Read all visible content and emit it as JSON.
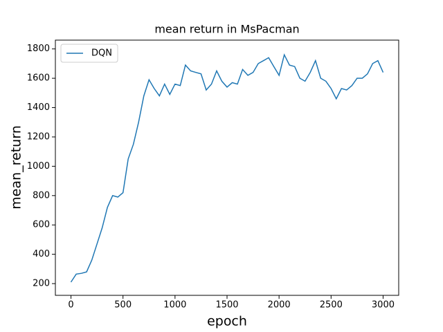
{
  "chart_data": {
    "type": "line",
    "title": "mean return in MsPacman",
    "x_label": "epoch",
    "y_label": "mean_return",
    "x": [
      0,
      50,
      100,
      150,
      200,
      250,
      300,
      350,
      400,
      450,
      500,
      550,
      600,
      650,
      700,
      750,
      800,
      850,
      900,
      950,
      1000,
      1050,
      1100,
      1150,
      1200,
      1250,
      1300,
      1350,
      1400,
      1450,
      1500,
      1550,
      1600,
      1650,
      1700,
      1750,
      1800,
      1850,
      1900,
      1950,
      2000,
      2050,
      2100,
      2150,
      2200,
      2250,
      2300,
      2350,
      2400,
      2450,
      2500,
      2550,
      2600,
      2650,
      2700,
      2750,
      2800,
      2850,
      2900,
      2950,
      3000
    ],
    "series": [
      {
        "name": "DQN",
        "color": "#1f77b4",
        "values": [
          210,
          265,
          270,
          280,
          360,
          470,
          580,
          720,
          800,
          790,
          820,
          1050,
          1150,
          1300,
          1480,
          1590,
          1530,
          1480,
          1560,
          1490,
          1560,
          1550,
          1690,
          1650,
          1640,
          1630,
          1520,
          1560,
          1650,
          1580,
          1540,
          1570,
          1560,
          1660,
          1620,
          1640,
          1700,
          1720,
          1740,
          1680,
          1620,
          1760,
          1690,
          1680,
          1600,
          1580,
          1640,
          1720,
          1600,
          1580,
          1530,
          1460,
          1530,
          1520,
          1550,
          1600,
          1600,
          1630,
          1700,
          1720,
          1640
        ]
      }
    ],
    "xlim": [
      -150,
      3150
    ],
    "ylim": [
      120,
      1860
    ],
    "xticks": [
      0,
      500,
      1000,
      1500,
      2000,
      2500,
      3000
    ],
    "yticks": [
      200,
      400,
      600,
      800,
      1000,
      1200,
      1400,
      1600,
      1800
    ],
    "legend": "upper left"
  }
}
